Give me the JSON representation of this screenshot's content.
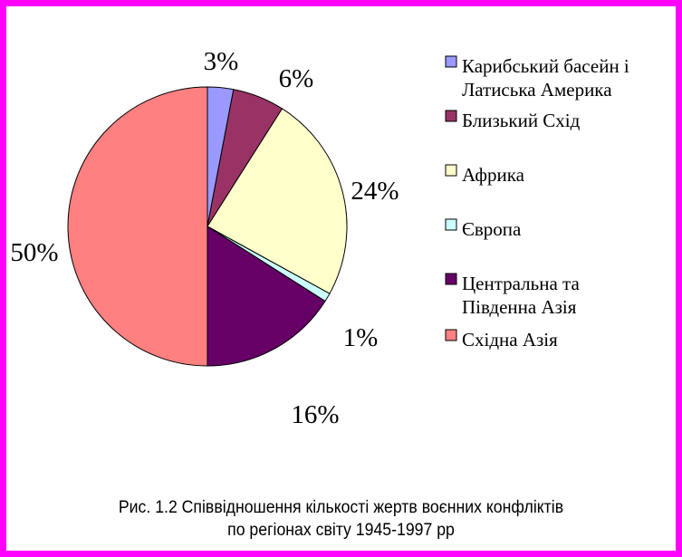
{
  "chart_data": {
    "type": "pie",
    "start_angle_deg": 0,
    "direction": "clockwise",
    "slices": [
      {
        "label": "Карибський басейн і Латиська Америка",
        "legend_lines": [
          "Карибський басейн і",
          "Латиська Америка"
        ],
        "value": 3,
        "value_label": "3%",
        "color": "#9999ff"
      },
      {
        "label": "Близький Схід",
        "legend_lines": [
          "Близький Схід"
        ],
        "value": 6,
        "value_label": "6%",
        "color": "#993366"
      },
      {
        "label": "Африка",
        "legend_lines": [
          "Африка"
        ],
        "value": 24,
        "value_label": "24%",
        "color": "#ffffcc"
      },
      {
        "label": "Європа",
        "legend_lines": [
          "Європа"
        ],
        "value": 1,
        "value_label": "1%",
        "color": "#ccffff"
      },
      {
        "label": "Центральна та Південна Азія",
        "legend_lines": [
          "Центральна та",
          "Південна Азія"
        ],
        "value": 16,
        "value_label": "16%",
        "color": "#660066"
      },
      {
        "label": "Східна Азія",
        "legend_lines": [
          "Східна Азія"
        ],
        "value": 50,
        "value_label": "50%",
        "color": "#ff8080"
      }
    ],
    "legend_position": "right"
  },
  "caption": {
    "line1": "Рис. 1.2 Співвідношення кількості жертв воєнних конфліктів",
    "line2": "по регіонах світу 1945-1997 рр"
  },
  "frame_color": "#ff00ff"
}
